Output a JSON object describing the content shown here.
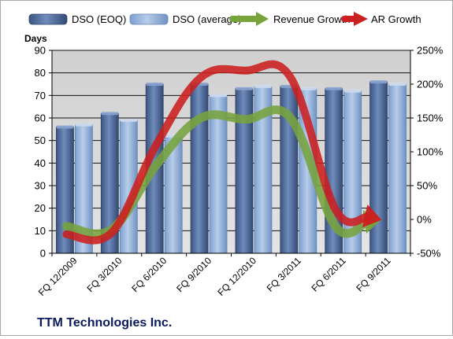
{
  "chart_data": {
    "type": "bar",
    "title": "TTM Technologies Inc.",
    "y_left_label": "Days",
    "y_left_lim": [
      0,
      90
    ],
    "y_left_ticks": [
      "0",
      "10",
      "20",
      "30",
      "40",
      "50",
      "60",
      "70",
      "80",
      "90"
    ],
    "y_right_lim": [
      -50,
      250
    ],
    "y_right_ticks": [
      "-50%",
      "0%",
      "50%",
      "100%",
      "150%",
      "200%",
      "250%"
    ],
    "categories": [
      "FQ 12/2009",
      "FQ 3/2010",
      "FQ 6/2010",
      "FQ 9/2010",
      "FQ 12/2010",
      "FQ 3/2011",
      "FQ 6/2011",
      "FQ 9/2011"
    ],
    "bar_series": [
      {
        "name": "DSO (EOQ)",
        "axis": "left",
        "values": [
          56,
          62,
          75,
          75,
          73,
          74,
          73,
          76
        ]
      },
      {
        "name": "DSO (average)",
        "axis": "left",
        "values": [
          57,
          59,
          52,
          70,
          74,
          73,
          72,
          75
        ]
      }
    ],
    "line_series": [
      {
        "name": "Revenue Growth",
        "axis": "right",
        "values": [
          -10,
          -15,
          80,
          150,
          148,
          150,
          -10,
          0
        ]
      },
      {
        "name": "AR Growth",
        "axis": "right",
        "values": [
          -22,
          -20,
          110,
          210,
          220,
          210,
          15,
          0
        ]
      }
    ],
    "grid": true,
    "legend_position": "top",
    "colors": {
      "bar_eoq": "#4f6b9c",
      "bar_avg": "#8fb0da",
      "revenue_growth": "#77a33d",
      "ar_growth": "#cc1f1f",
      "plot_bg": "#d9d9d9",
      "grid": "#111111"
    }
  }
}
